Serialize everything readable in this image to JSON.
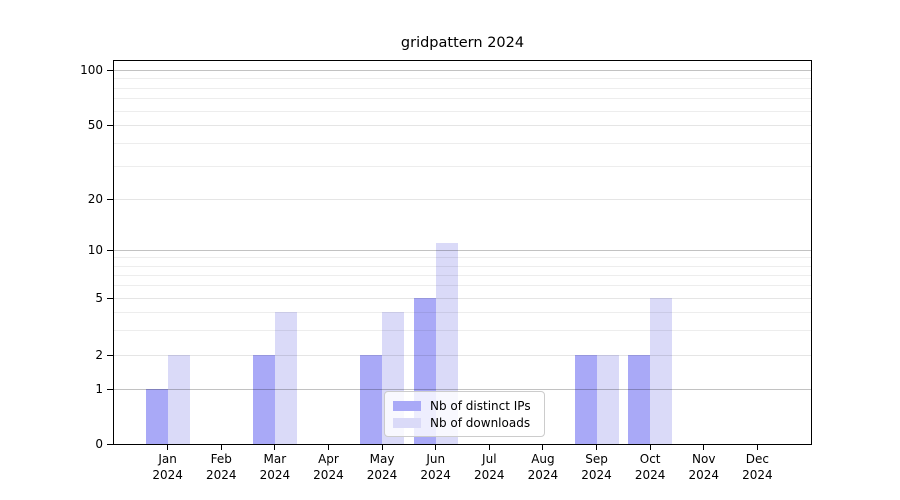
{
  "title": "gridpattern 2024",
  "colors": {
    "bar_distinct_ips": "#a9a9f7",
    "bar_downloads": "#dadaf8",
    "grid_decade": "rgba(0,0,0,0.24)",
    "grid_major": "rgba(0,0,0,0.10)",
    "grid_minor": "rgba(0,0,0,0.07)",
    "axis": "#000000"
  },
  "legend": {
    "items": [
      {
        "label": "Nb of distinct IPs",
        "color_key": "bar_distinct_ips"
      },
      {
        "label": "Nb of downloads",
        "color_key": "bar_downloads"
      }
    ],
    "position": "lower center"
  },
  "chart_data": {
    "type": "bar",
    "title": "gridpattern 2024",
    "categories": [
      "Jan 2024",
      "Feb 2024",
      "Mar 2024",
      "Apr 2024",
      "May 2024",
      "Jun 2024",
      "Jul 2024",
      "Aug 2024",
      "Sep 2024",
      "Oct 2024",
      "Nov 2024",
      "Dec 2024"
    ],
    "series": [
      {
        "name": "Nb of distinct IPs",
        "values": [
          1,
          0,
          2,
          0,
          2,
          5,
          0,
          0,
          2,
          2,
          0,
          0
        ]
      },
      {
        "name": "Nb of downloads",
        "values": [
          2,
          0,
          4,
          0,
          4,
          11,
          0,
          0,
          2,
          5,
          0,
          0
        ]
      }
    ],
    "xlabel": "",
    "ylabel": "",
    "y_axis": {
      "scale": "log-like, compressed below 10 (0 shown at baseline)",
      "ticks": [
        0,
        1,
        2,
        5,
        10,
        20,
        50,
        100
      ],
      "minor_ticks": [
        3,
        4,
        6,
        7,
        8,
        9,
        30,
        40,
        60,
        70,
        80,
        90
      ],
      "ylim": [
        0,
        112
      ]
    },
    "grid": true,
    "legend_position": "lower center"
  }
}
